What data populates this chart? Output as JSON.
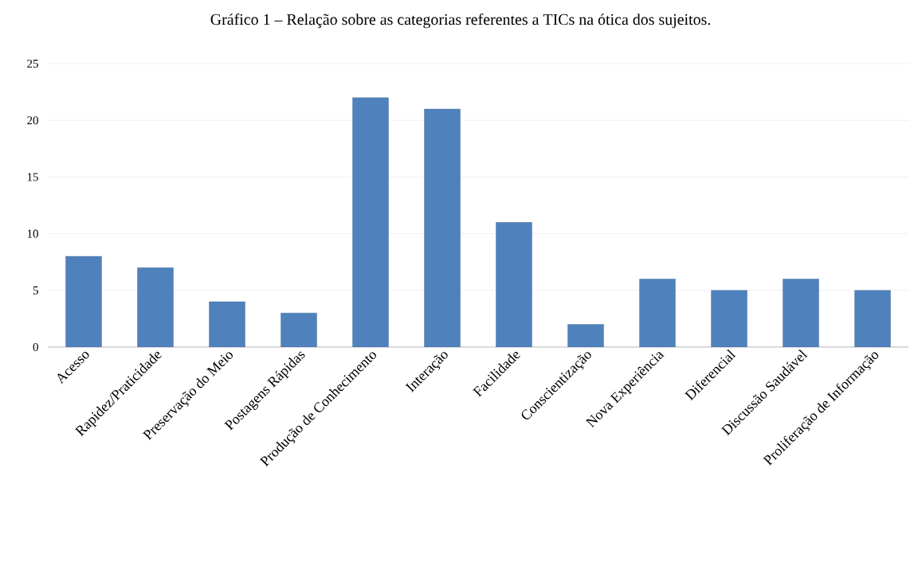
{
  "chart_data": {
    "type": "bar",
    "title": "Gráfico 1 – Relação sobre as categorias referentes a TICs na ótica dos sujeitos.",
    "categories": [
      "Acesso",
      "Rapidez/Praticidade",
      "Preservação do Meio",
      "Postagens Rápidas",
      "Produção de Conhecimento",
      "Interação",
      "Facilidade",
      "Conscientização",
      "Nova Experiência",
      "Diferencial",
      "Discussão Saudável",
      "Proliferação de Informação"
    ],
    "values": [
      8,
      7,
      4,
      3,
      22,
      21,
      11,
      2,
      6,
      5,
      6,
      5
    ],
    "color": "#4f81bd",
    "ylim": [
      0,
      25
    ],
    "yticks": [
      0,
      5,
      10,
      15,
      20,
      25
    ],
    "grid": "y"
  }
}
